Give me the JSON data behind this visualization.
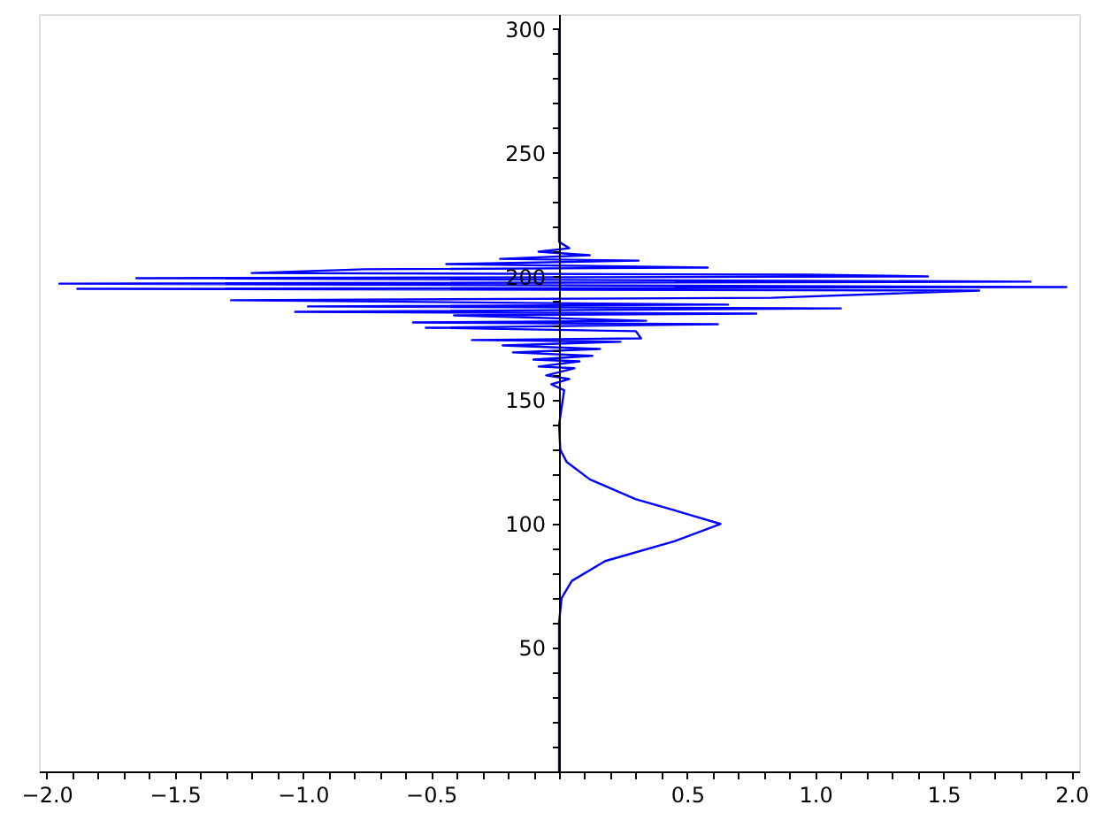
{
  "chart_data": {
    "type": "line",
    "series": [
      {
        "color": "#0000ff",
        "x": [
          0,
          0,
          0.01,
          0.05,
          0.18,
          0.45,
          0.63,
          0.5,
          0.3,
          0.12,
          0.03,
          0.005,
          0,
          0.02,
          -0.03,
          0.04,
          -0.05,
          0.06,
          -0.08,
          0.08,
          -0.1,
          0.13,
          -0.18,
          0.16,
          -0.22,
          0.24,
          -0.34,
          0.32,
          0.3,
          -0.52,
          0.62,
          -0.57,
          0.34,
          -0.41,
          0.77,
          -1.03,
          1.1,
          -0.98,
          0.66,
          -1.28,
          0.83,
          1.64,
          -1.88,
          1.98,
          -1.95,
          1.84,
          -1.65,
          1.44,
          0.97,
          -1.2,
          -0.76,
          0.58,
          -0.44,
          0.31,
          -0.23,
          0.12,
          -0.08,
          0.04,
          0,
          0
        ],
        "values": [
          0,
          60,
          70,
          77,
          85,
          93,
          100,
          104,
          110,
          118,
          125,
          130,
          140,
          154,
          156.4,
          158.6,
          160,
          162.9,
          163.6,
          165.7,
          166.4,
          167.9,
          169.3,
          170.7,
          172.1,
          173.6,
          174.3,
          175,
          177.9,
          179.3,
          180.7,
          181.4,
          182.1,
          184.3,
          185,
          185.7,
          187.1,
          187.9,
          188.6,
          190.4,
          191.4,
          194.3,
          195,
          195.7,
          197.1,
          197.9,
          199.3,
          200,
          200.7,
          201.4,
          202.9,
          203.6,
          205,
          206.4,
          207.1,
          208.6,
          210,
          211.4,
          214,
          300
        ]
      }
    ],
    "xlim": [
      -2.03,
      2.03
    ],
    "ylim": [
      0,
      306
    ],
    "xticks": [
      {
        "value": -2,
        "label": "−2.0"
      },
      {
        "value": -1.5,
        "label": "−1.5"
      },
      {
        "value": -1,
        "label": "−1.0"
      },
      {
        "value": -0.5,
        "label": "−0.5"
      },
      {
        "value": 0,
        "label": null
      },
      {
        "value": 0.5,
        "label": "0.5"
      },
      {
        "value": 1,
        "label": "1.0"
      },
      {
        "value": 1.5,
        "label": "1.5"
      },
      {
        "value": 2,
        "label": "2.0"
      },
      {
        "value": -1.9,
        "label": null
      },
      {
        "value": -1.8,
        "label": null
      },
      {
        "value": -1.7,
        "label": null
      },
      {
        "value": -1.6,
        "label": null
      },
      {
        "value": -1.4,
        "label": null
      },
      {
        "value": -1.3,
        "label": null
      },
      {
        "value": -1.2,
        "label": null
      },
      {
        "value": -1.1,
        "label": null
      },
      {
        "value": -0.9,
        "label": null
      },
      {
        "value": -0.8,
        "label": null
      },
      {
        "value": -0.7,
        "label": null
      },
      {
        "value": -0.6,
        "label": null
      },
      {
        "value": -0.4,
        "label": null
      },
      {
        "value": -0.3,
        "label": null
      },
      {
        "value": -0.2,
        "label": null
      },
      {
        "value": -0.1,
        "label": null
      },
      {
        "value": 0.1,
        "label": null
      },
      {
        "value": 0.2,
        "label": null
      },
      {
        "value": 0.3,
        "label": null
      },
      {
        "value": 0.4,
        "label": null
      },
      {
        "value": 0.6,
        "label": null
      },
      {
        "value": 0.7,
        "label": null
      },
      {
        "value": 0.8,
        "label": null
      },
      {
        "value": 0.9,
        "label": null
      },
      {
        "value": 1.1,
        "label": null
      },
      {
        "value": 1.2,
        "label": null
      },
      {
        "value": 1.3,
        "label": null
      },
      {
        "value": 1.4,
        "label": null
      },
      {
        "value": 1.6,
        "label": null
      },
      {
        "value": 1.7,
        "label": null
      },
      {
        "value": 1.8,
        "label": null
      },
      {
        "value": 1.9,
        "label": null
      }
    ],
    "yticks": [
      50,
      100,
      150,
      200,
      250,
      300,
      {
        "value": 10,
        "label": null
      },
      {
        "value": 20,
        "label": null
      },
      {
        "value": 30,
        "label": null
      },
      {
        "value": 40,
        "label": null
      },
      {
        "value": 60,
        "label": null
      },
      {
        "value": 70,
        "label": null
      },
      {
        "value": 80,
        "label": null
      },
      {
        "value": 90,
        "label": null
      },
      {
        "value": 110,
        "label": null
      },
      {
        "value": 120,
        "label": null
      },
      {
        "value": 130,
        "label": null
      },
      {
        "value": 140,
        "label": null
      },
      {
        "value": 160,
        "label": null
      },
      {
        "value": 170,
        "label": null
      },
      {
        "value": 180,
        "label": null
      },
      {
        "value": 190,
        "label": null
      },
      {
        "value": 210,
        "label": null
      },
      {
        "value": 220,
        "label": null
      },
      {
        "value": 230,
        "label": null
      },
      {
        "value": 240,
        "label": null
      },
      {
        "value": 260,
        "label": null
      },
      {
        "value": 270,
        "label": null
      },
      {
        "value": 280,
        "label": null
      },
      {
        "value": 290,
        "label": null
      }
    ],
    "grid": false,
    "marker": "none",
    "line_style": "solid"
  }
}
